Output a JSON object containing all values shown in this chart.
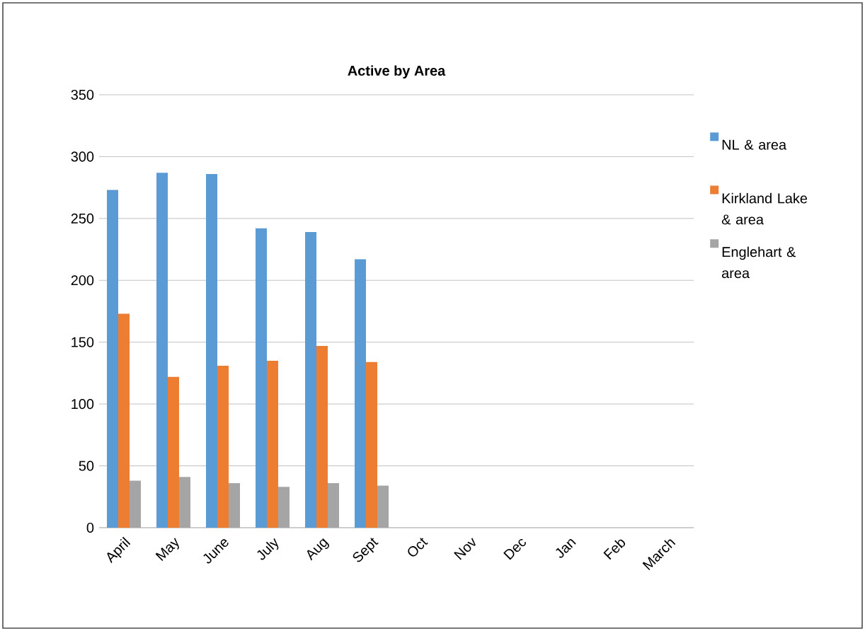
{
  "chart_data": {
    "type": "bar",
    "title": "Active by Area",
    "categories": [
      "April",
      "May",
      "June",
      "July",
      "Aug",
      "Sept",
      "Oct",
      "Nov",
      "Dec",
      "Jan",
      "Feb",
      "March"
    ],
    "series": [
      {
        "name": "NL & area",
        "color": "#5b9bd5",
        "values": [
          273,
          287,
          286,
          242,
          239,
          217,
          null,
          null,
          null,
          null,
          null,
          null
        ]
      },
      {
        "name": "Kirkland Lake & area",
        "color": "#ed7d31",
        "values": [
          173,
          122,
          131,
          135,
          147,
          134,
          null,
          null,
          null,
          null,
          null,
          null
        ]
      },
      {
        "name": "Englehart & area",
        "color": "#a5a5a5",
        "values": [
          38,
          41,
          36,
          33,
          36,
          34,
          null,
          null,
          null,
          null,
          null,
          null
        ]
      }
    ],
    "ylim": [
      0,
      350
    ],
    "yticks": [
      0,
      50,
      100,
      150,
      200,
      250,
      300,
      350
    ],
    "grid": "y",
    "legend": "right"
  }
}
